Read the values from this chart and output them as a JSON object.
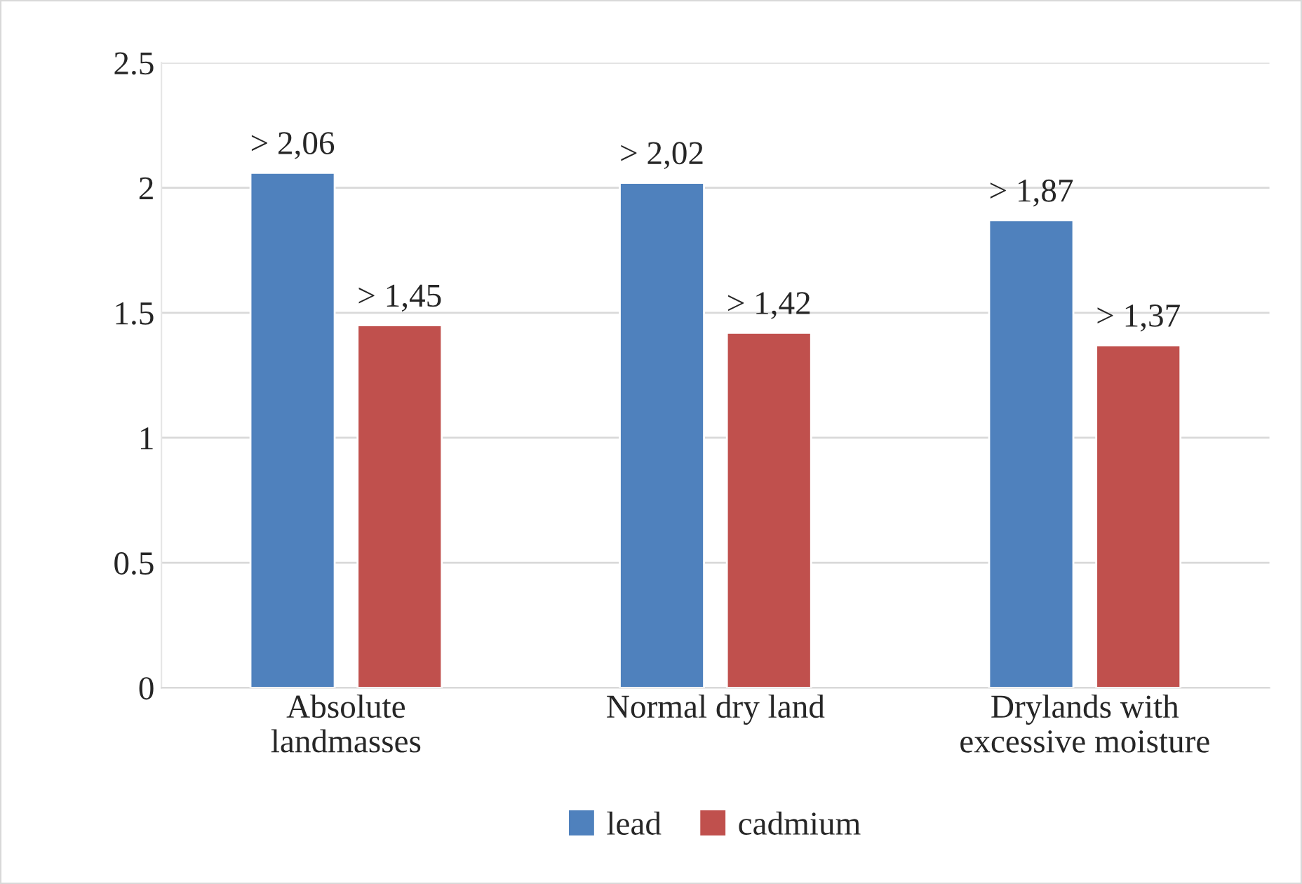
{
  "chart_data": {
    "type": "bar",
    "categories": [
      "Absolute\nlandmasses",
      "Normal dry land",
      "Drylands with\nexcessive moisture"
    ],
    "series": [
      {
        "name": "lead",
        "color": "#4f81bd",
        "values": [
          2.06,
          2.02,
          1.87
        ],
        "value_labels": [
          "> 2,06",
          "> 2,02",
          "> 1,87"
        ]
      },
      {
        "name": "cadmium",
        "color": "#c0504d",
        "values": [
          1.45,
          1.42,
          1.37
        ],
        "value_labels": [
          "> 1,45",
          "> 1,42",
          "> 1,37"
        ]
      }
    ],
    "ylim": [
      0,
      2.5
    ],
    "yticks": [
      0,
      0.5,
      1,
      1.5,
      2,
      2.5
    ],
    "grid": "y",
    "legend": "bottom"
  }
}
